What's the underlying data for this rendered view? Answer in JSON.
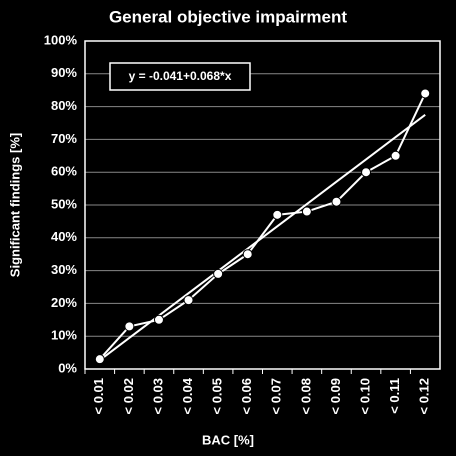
{
  "chart_data": {
    "type": "line",
    "title": "General objective impairment",
    "x_label": "BAC [%]",
    "y_label": "Significant findings [%]",
    "categories": [
      "< 0.01",
      "< 0.02",
      "< 0.03",
      "< 0.04",
      "< 0.05",
      "< 0.06",
      "< 0.07",
      "< 0.08",
      "< 0.09",
      "< 0.10",
      "< 0.11",
      "< 0.12"
    ],
    "values": [
      3,
      13,
      15,
      21,
      29,
      35,
      47,
      48,
      51,
      60,
      65,
      84
    ],
    "color": "#ffffff",
    "trendline": {
      "label": "y = -0.041+0.068*x",
      "values": [
        2.7,
        9.5,
        16.3,
        23.1,
        29.9,
        36.7,
        43.5,
        50.3,
        57.1,
        63.9,
        70.7,
        77.5
      ]
    },
    "ylim": [
      0,
      100
    ],
    "yticks": [
      {
        "value": 0,
        "label": "0%"
      },
      {
        "value": 10,
        "label": "10%"
      },
      {
        "value": 20,
        "label": "20%"
      },
      {
        "value": 30,
        "label": "30%"
      },
      {
        "value": 40,
        "label": "40%"
      },
      {
        "value": 50,
        "label": "50%"
      },
      {
        "value": 60,
        "label": "60%"
      },
      {
        "value": 70,
        "label": "70%"
      },
      {
        "value": 80,
        "label": "80%"
      },
      {
        "value": 90,
        "label": "90%"
      },
      {
        "value": 100,
        "label": "100%"
      }
    ],
    "grid": true
  }
}
